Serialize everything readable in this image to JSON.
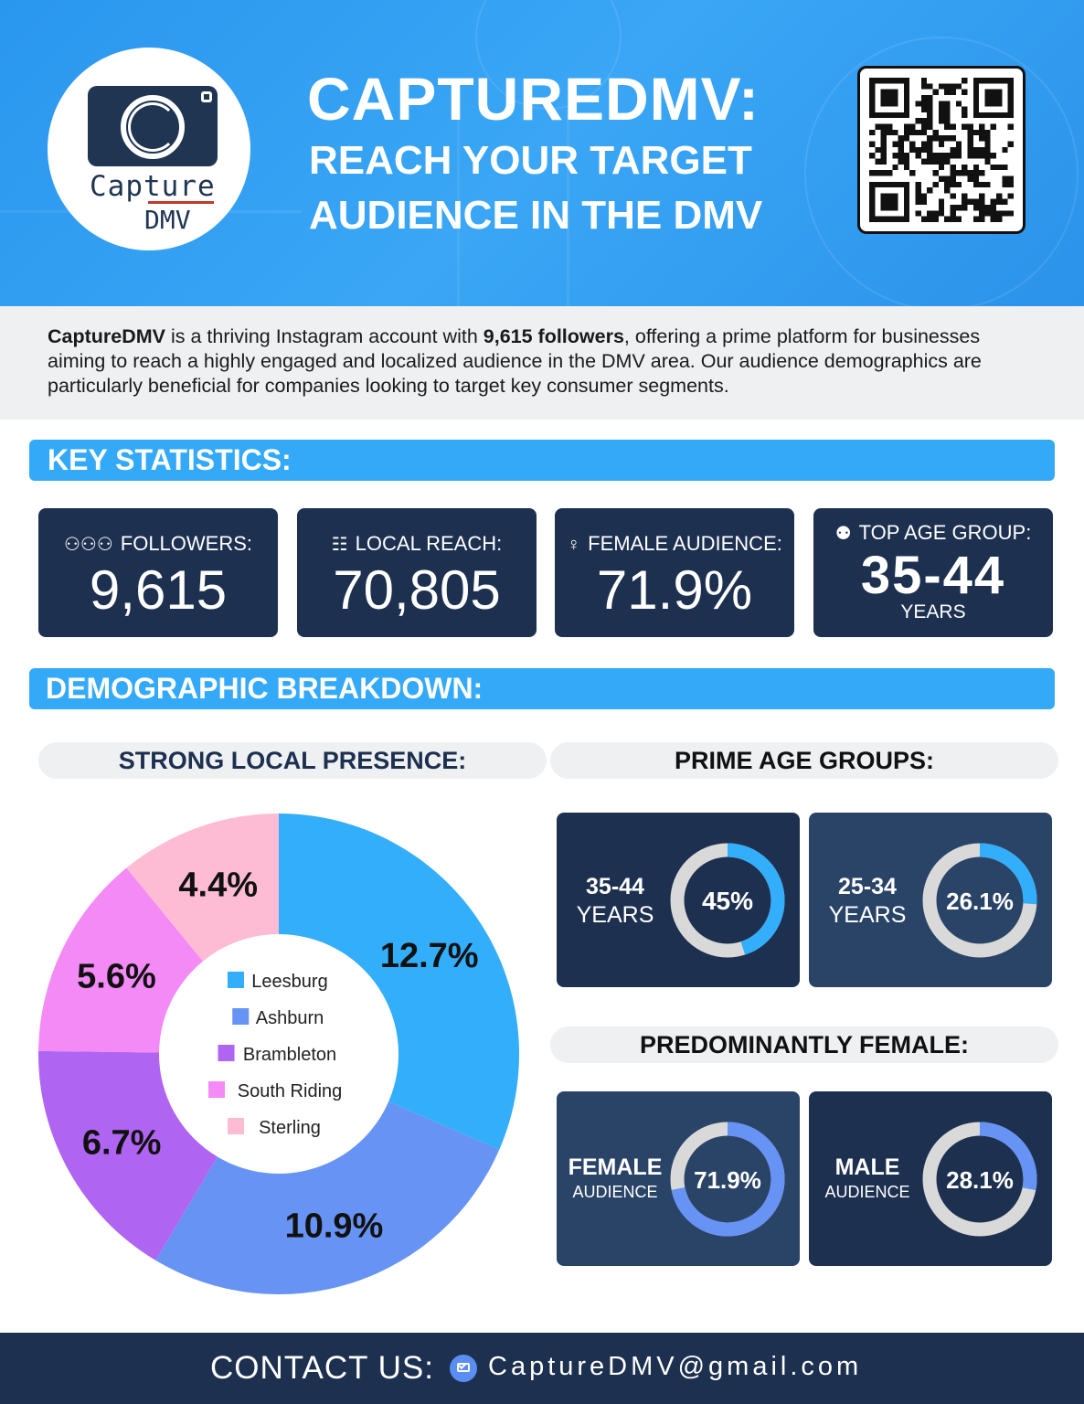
{
  "header": {
    "logo_line1": "Capture",
    "logo_line2": "DMV",
    "title": "CAPTUREDMV:",
    "subtitle": "REACH YOUR TARGET AUDIENCE IN THE DMV",
    "qr_icon": "qr-code-icon"
  },
  "intro": {
    "brand": "CaptureDMV",
    "text_a": " is a thriving Instagram account with ",
    "followers_bold": "9,615 followers",
    "text_b": ", offering a prime platform for businesses aiming to reach a highly engaged and localized audience in the DMV area. Our audience demographics are particularly beneficial for companies looking to target key consumer segments."
  },
  "key_statistics": {
    "heading": "KEY STATISTICS:",
    "stats": [
      {
        "icon": "people-icon",
        "label": "FOLLOWERS:",
        "value": "9,615"
      },
      {
        "icon": "network-icon",
        "label": "LOCAL REACH:",
        "value": "70,805"
      },
      {
        "icon": "woman-icon",
        "label": "FEMALE AUDIENCE:",
        "value": "71.9%"
      },
      {
        "icon": "age-group-icon",
        "label": "TOP AGE GROUP:",
        "value": "35-44",
        "sub": "YEARS"
      }
    ]
  },
  "demographics": {
    "heading": "DEMOGRAPHIC BREAKDOWN:",
    "local_heading": "STRONG LOCAL PRESENCE:",
    "age_heading": "PRIME AGE GROUPS:",
    "gender_heading": "PREDOMINANTLY FEMALE:",
    "age_cards": [
      {
        "line1": "35-44",
        "line2": "YEARS",
        "value": "45%",
        "fraction": 0.45
      },
      {
        "line1": "25-34",
        "line2": "YEARS",
        "value": "26.1%",
        "fraction": 0.261
      }
    ],
    "gender_cards": [
      {
        "line1": "FEMALE",
        "line2": "AUDIENCE",
        "value": "71.9%",
        "fraction": 0.719
      },
      {
        "line1": "MALE",
        "line2": "AUDIENCE",
        "value": "28.1%",
        "fraction": 0.281
      }
    ]
  },
  "chart_data": {
    "type": "pie",
    "donut": true,
    "categories": [
      "Leesburg",
      "Ashburn",
      "Brambleton",
      "South Riding",
      "Sterling"
    ],
    "values": [
      12.7,
      10.9,
      6.7,
      5.6,
      4.4
    ],
    "labels": [
      "12.7%",
      "10.9%",
      "6.7%",
      "5.6%",
      "4.4%"
    ],
    "colors": [
      "#33aefa",
      "#6693f4",
      "#b065f2",
      "#f38af6",
      "#fdbcd4"
    ],
    "legend": "center"
  },
  "footer": {
    "contact_label": "CONTACT US:",
    "email": "CaptureDMV@gmail.com"
  },
  "colors": {
    "header_blue": "#2f9ef2",
    "bar_blue": "#34a9f7",
    "navy": "#1d3050",
    "navy_mid": "#2a4468",
    "age_ring": "#33aefa",
    "gender_ring": "#6693f4",
    "ring_bg": "#d9d9d9"
  }
}
